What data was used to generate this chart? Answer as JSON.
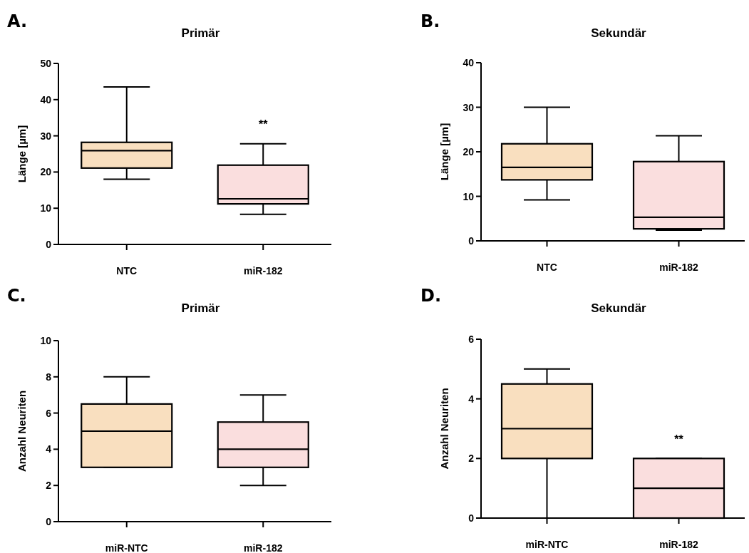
{
  "chart_data": [
    {
      "type": "box",
      "title": "Primär",
      "ylabel": "Länge [µm]",
      "categories": [
        "NTC",
        "miR-182"
      ],
      "colors": [
        "#f9dfbf",
        "#fadede"
      ],
      "boxes": [
        {
          "low": 18.0,
          "q1": 21.1,
          "median": 25.9,
          "q3": 28.2,
          "high": 43.5
        },
        {
          "low": 8.3,
          "q1": 11.2,
          "median": 12.6,
          "q3": 21.9,
          "high": 27.8
        }
      ],
      "ylim": [
        0,
        50
      ],
      "yticks": [
        0,
        10,
        20,
        30,
        40,
        50
      ],
      "annotations": [
        "A.",
        "**"
      ]
    },
    {
      "type": "box",
      "title": "Sekundär",
      "ylabel": "Länge [µm]",
      "categories": [
        "NTC",
        "miR-182"
      ],
      "colors": [
        "#f9dfbf",
        "#fadede"
      ],
      "boxes": [
        {
          "low": 9.2,
          "q1": 13.7,
          "median": 16.5,
          "q3": 21.8,
          "high": 30.0
        },
        {
          "low": 2.4,
          "q1": 2.7,
          "median": 5.3,
          "q3": 17.8,
          "high": 23.6
        }
      ],
      "ylim": [
        0,
        40
      ],
      "yticks": [
        0,
        10,
        20,
        30,
        40
      ],
      "annotations": [
        "B."
      ]
    },
    {
      "type": "box",
      "title": "Primär",
      "ylabel": "Anzahl Neuriten",
      "categories": [
        "miR-NTC",
        "miR-182"
      ],
      "colors": [
        "#f9dfbf",
        "#fadede"
      ],
      "boxes": [
        {
          "low": 3,
          "q1": 3,
          "median": 5,
          "q3": 6.5,
          "high": 8
        },
        {
          "low": 2,
          "q1": 3,
          "median": 4,
          "q3": 5.5,
          "high": 7
        }
      ],
      "ylim": [
        0,
        10
      ],
      "yticks": [
        0,
        2,
        4,
        6,
        8,
        10
      ],
      "annotations": [
        "C."
      ]
    },
    {
      "type": "box",
      "title": "Sekundär",
      "ylabel": "Anzahl Neuriten",
      "categories": [
        "miR-NTC",
        "miR-182"
      ],
      "colors": [
        "#f9dfbf",
        "#fadede"
      ],
      "boxes": [
        {
          "low": 0,
          "q1": 2,
          "median": 3,
          "q3": 4.5,
          "high": 5
        },
        {
          "low": 0,
          "q1": 0,
          "median": 1,
          "q3": 2,
          "high": 2
        }
      ],
      "ylim": [
        0,
        6
      ],
      "yticks": [
        0,
        2,
        4,
        6
      ],
      "annotations": [
        "D.",
        "**"
      ]
    }
  ]
}
